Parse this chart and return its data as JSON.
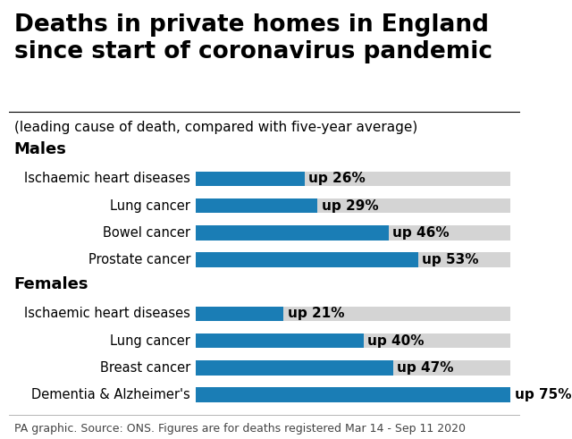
{
  "title": "Deaths in private homes in England\nsince start of coronavirus pandemic",
  "subtitle": "(leading cause of death, compared with five-year average)",
  "footer": "PA graphic. Source: ONS. Figures are for deaths registered Mar 14 - Sep 11 2020",
  "sections": [
    {
      "label": "Males",
      "items": [
        {
          "name": "Ischaemic heart diseases",
          "value": 26,
          "label": "up 26%"
        },
        {
          "name": "Lung cancer",
          "value": 29,
          "label": "up 29%"
        },
        {
          "name": "Bowel cancer",
          "value": 46,
          "label": "up 46%"
        },
        {
          "name": "Prostate cancer",
          "value": 53,
          "label": "up 53%"
        }
      ]
    },
    {
      "label": "Females",
      "items": [
        {
          "name": "Ischaemic heart diseases",
          "value": 21,
          "label": "up 21%"
        },
        {
          "name": "Lung cancer",
          "value": 40,
          "label": "up 40%"
        },
        {
          "name": "Breast cancer",
          "value": 47,
          "label": "up 47%"
        },
        {
          "name": "Dementia & Alzheimer's",
          "value": 75,
          "label": "up 75%"
        }
      ]
    }
  ],
  "max_value": 75,
  "bar_color": "#1a7db5",
  "bg_color": "#d4d4d4",
  "background": "#ffffff",
  "bar_height": 0.55,
  "title_fontsize": 19,
  "subtitle_fontsize": 11,
  "label_fontsize": 10.5,
  "section_fontsize": 13,
  "value_fontsize": 11,
  "footer_fontsize": 9
}
